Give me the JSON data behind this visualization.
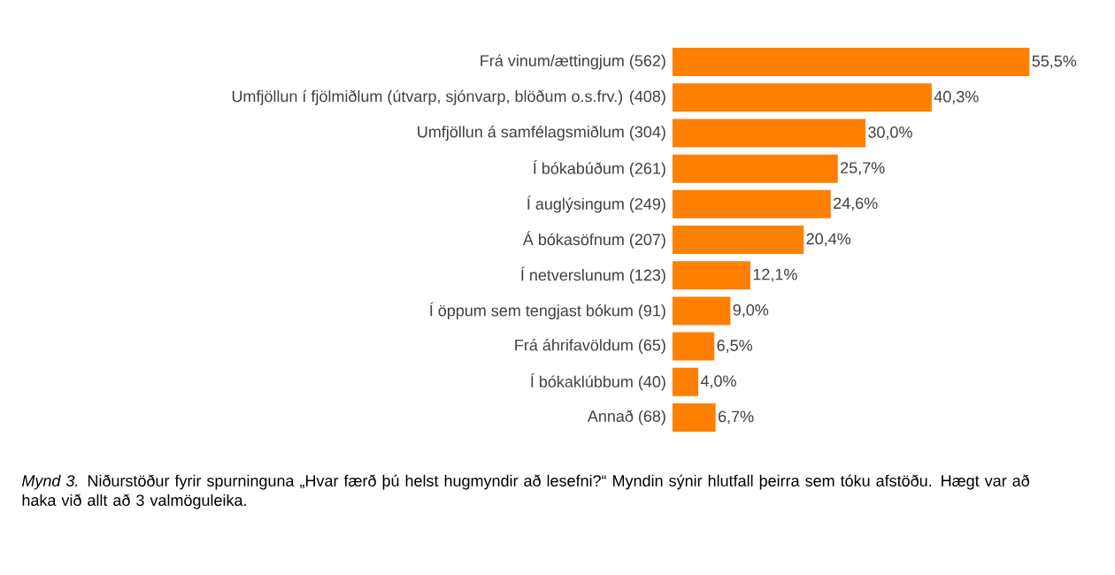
{
  "chart_data": {
    "type": "bar",
    "orientation": "horizontal",
    "color": "#ff7f00",
    "categories": [
      "Frá vinum/ættingjum (562)",
      "Umfjöllun í fjölmiðlum (útvarp, sjónvarp, blöðum o.s.frv.) (408)",
      "Umfjöllun á samfélagsmiðlum (304)",
      "Í bókabúðum (261)",
      "Í auglýsingum (249)",
      "Á bókasöfnum (207)",
      "Í netverslunum (123)",
      "Í öppum sem tengjast bókum (91)",
      "Frá áhrifavöldum (65)",
      "Í bókaklúbbum (40)",
      "Annað (68)"
    ],
    "values": [
      55.5,
      40.3,
      30.0,
      25.7,
      24.6,
      20.4,
      12.1,
      9.0,
      6.5,
      4.0,
      6.7
    ],
    "value_labels": [
      "55,5%",
      "40,3%",
      "30,0%",
      "25,7%",
      "24,6%",
      "20,4%",
      "12,1%",
      "9,0%",
      "6,5%",
      "4,0%",
      "6,7%"
    ],
    "annotations": [
      "*Mynd 3.* Niðurstöður fyrir spurninguna „Hvar færð þú helst hugmyndir að lesefni?“ Myndin sýnir hlutfall þeirra sem tóku afstöðu. Hægt var að haka við allt að 3 valmöguleika."
    ]
  }
}
